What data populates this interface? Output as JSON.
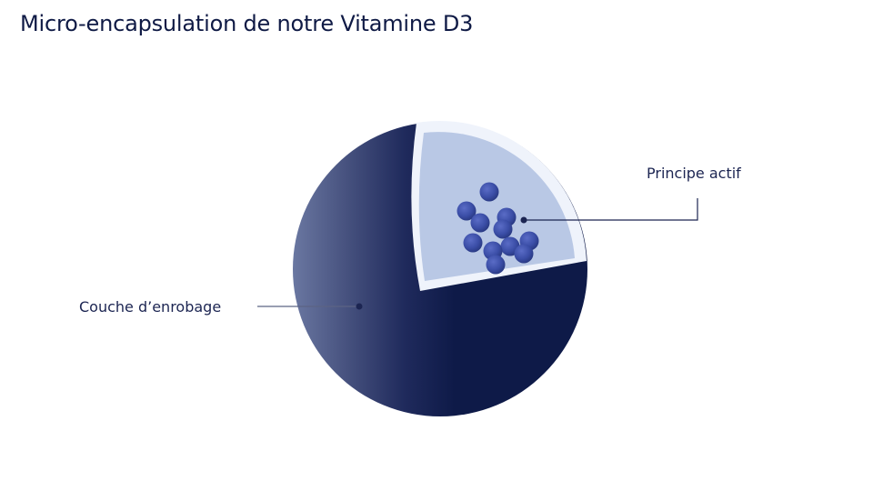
{
  "title": "Micro-encapsulation de notre Vitamine D3",
  "labels": {
    "core": "Principe actif",
    "shell": "Couche d’enrobage"
  },
  "colors": {
    "title": "#0f1a45",
    "shell_dark": "#0e1a48",
    "shell_light": "#6a77a1",
    "core_fill": "#b9c8e5",
    "core_rim": "#eff3fb",
    "particles": "#3b4ea7",
    "line": "#1c2552"
  }
}
